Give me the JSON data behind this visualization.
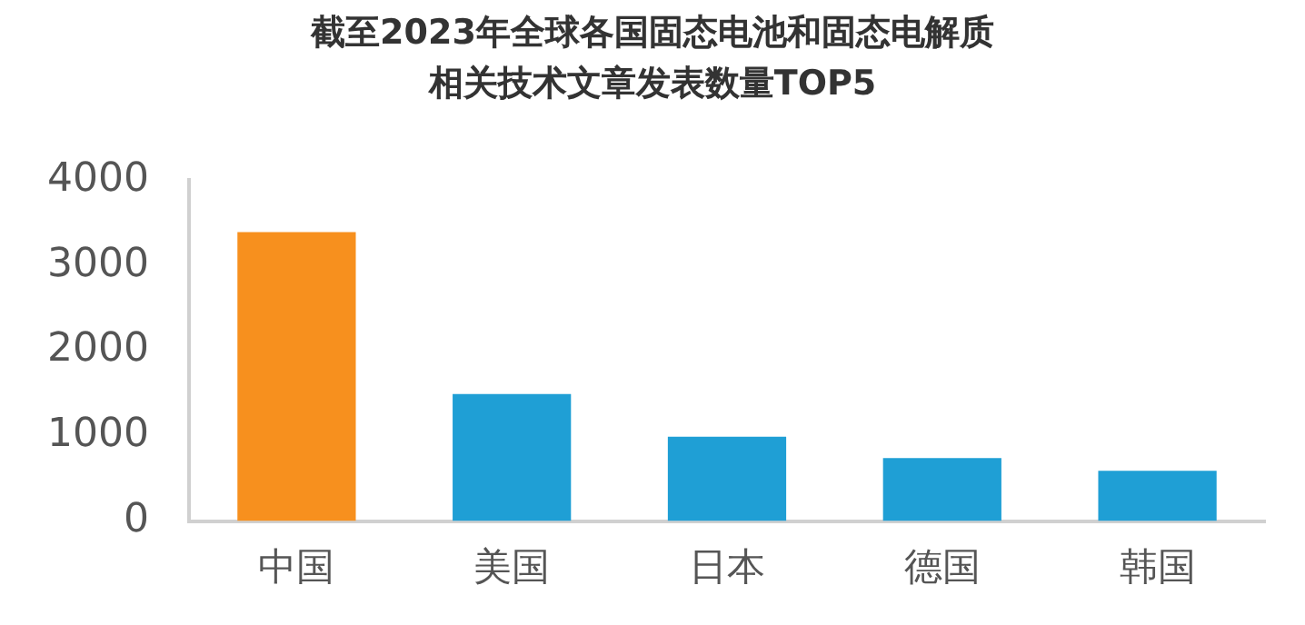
{
  "chart_data": {
    "type": "bar",
    "title": "截至2023年全球各国固态电池和固态电解质相关技术文章发表数量TOP5",
    "categories": [
      "中国",
      "美国",
      "日本",
      "德国",
      "韩国"
    ],
    "values": [
      3390,
      1490,
      990,
      740,
      590
    ],
    "colors": [
      "#f7901e",
      "#1f9fd5",
      "#1f9fd5",
      "#1f9fd5",
      "#1f9fd5"
    ],
    "ylim": [
      0,
      4000
    ],
    "yticks": [
      0,
      1000,
      2000,
      3000,
      4000
    ],
    "grid": false,
    "legend": false
  }
}
